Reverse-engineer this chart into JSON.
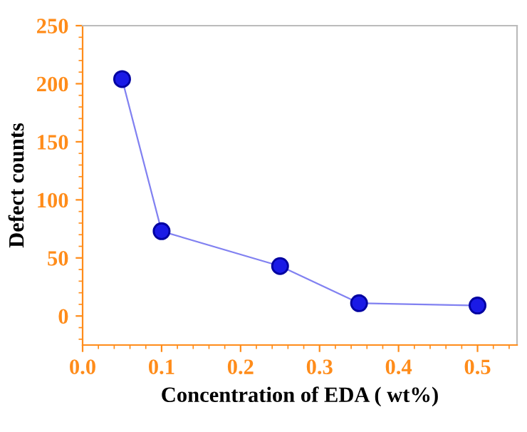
{
  "chart_data": {
    "type": "line",
    "xlabel": "Concentration of EDA ( wt%)",
    "ylabel": "Defect counts",
    "x": [
      0.05,
      0.1,
      0.25,
      0.35,
      0.5
    ],
    "series": [
      {
        "color": "#1a1ae6",
        "values": [
          204,
          73,
          43,
          11,
          9
        ]
      }
    ],
    "xlim": [
      0.0,
      0.55
    ],
    "xticks": [
      {
        "value": 0.0,
        "label": "0.0"
      },
      0.1,
      0.2,
      0.3,
      0.4,
      0.5
    ],
    "ylim": [
      -25,
      250
    ],
    "yticks": [
      0,
      50,
      100,
      150,
      200,
      250
    ],
    "marker": "circle",
    "line_style": "solid",
    "grid": false,
    "legend": false
  }
}
